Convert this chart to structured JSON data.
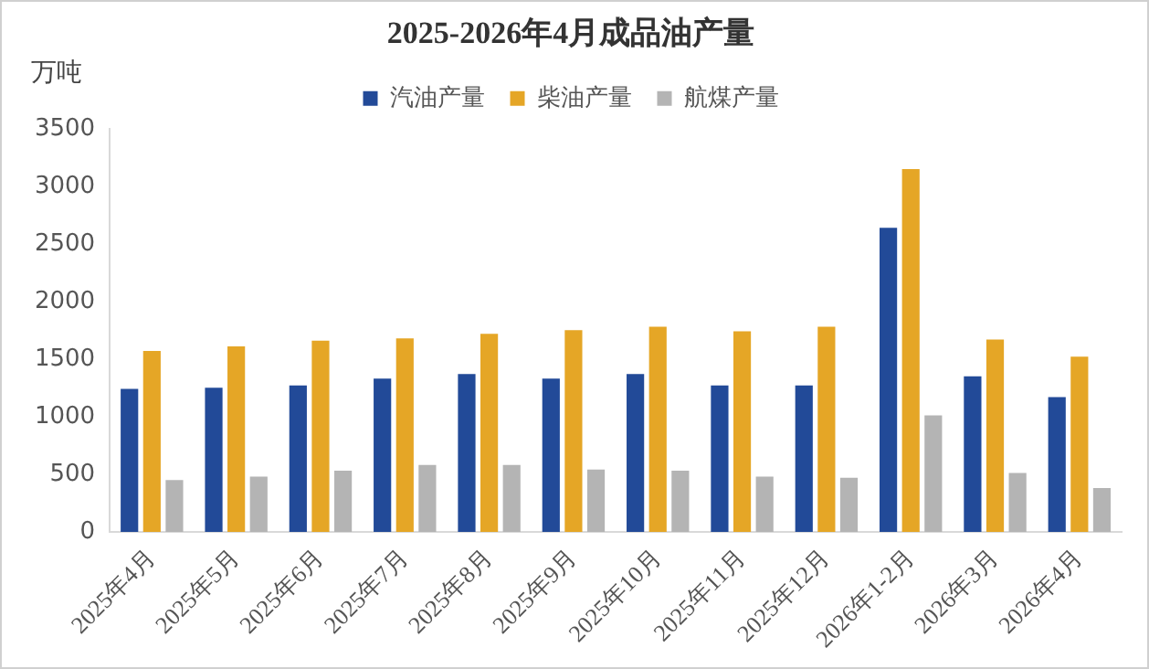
{
  "chart_data": {
    "type": "bar",
    "title": "2025-2026年4月成品油产量",
    "ylabel": "万吨",
    "categories": [
      "2025年4月",
      "2025年5月",
      "2025年6月",
      "2025年7月",
      "2025年8月",
      "2025年9月",
      "2025年10月",
      "2025年11月",
      "2025年12月",
      "2026年1-2月",
      "2026年3月",
      "2026年4月"
    ],
    "series": [
      {
        "name": "汽油产量",
        "color": "#224a98",
        "values": [
          1240,
          1250,
          1270,
          1330,
          1370,
          1330,
          1370,
          1270,
          1270,
          2640,
          1350,
          1170
        ]
      },
      {
        "name": "柴油产量",
        "color": "#e5a626",
        "values": [
          1570,
          1610,
          1660,
          1680,
          1720,
          1750,
          1780,
          1740,
          1780,
          3150,
          1670,
          1520
        ]
      },
      {
        "name": "航煤产量",
        "color": "#b4b4b4",
        "values": [
          450,
          480,
          530,
          580,
          580,
          540,
          530,
          480,
          470,
          1010,
          510,
          380
        ]
      }
    ],
    "ylim": [
      0,
      3500
    ],
    "yticks": [
      0,
      500,
      1000,
      1500,
      2000,
      2500,
      3000,
      3500
    ],
    "grid": false,
    "legend": "top"
  }
}
